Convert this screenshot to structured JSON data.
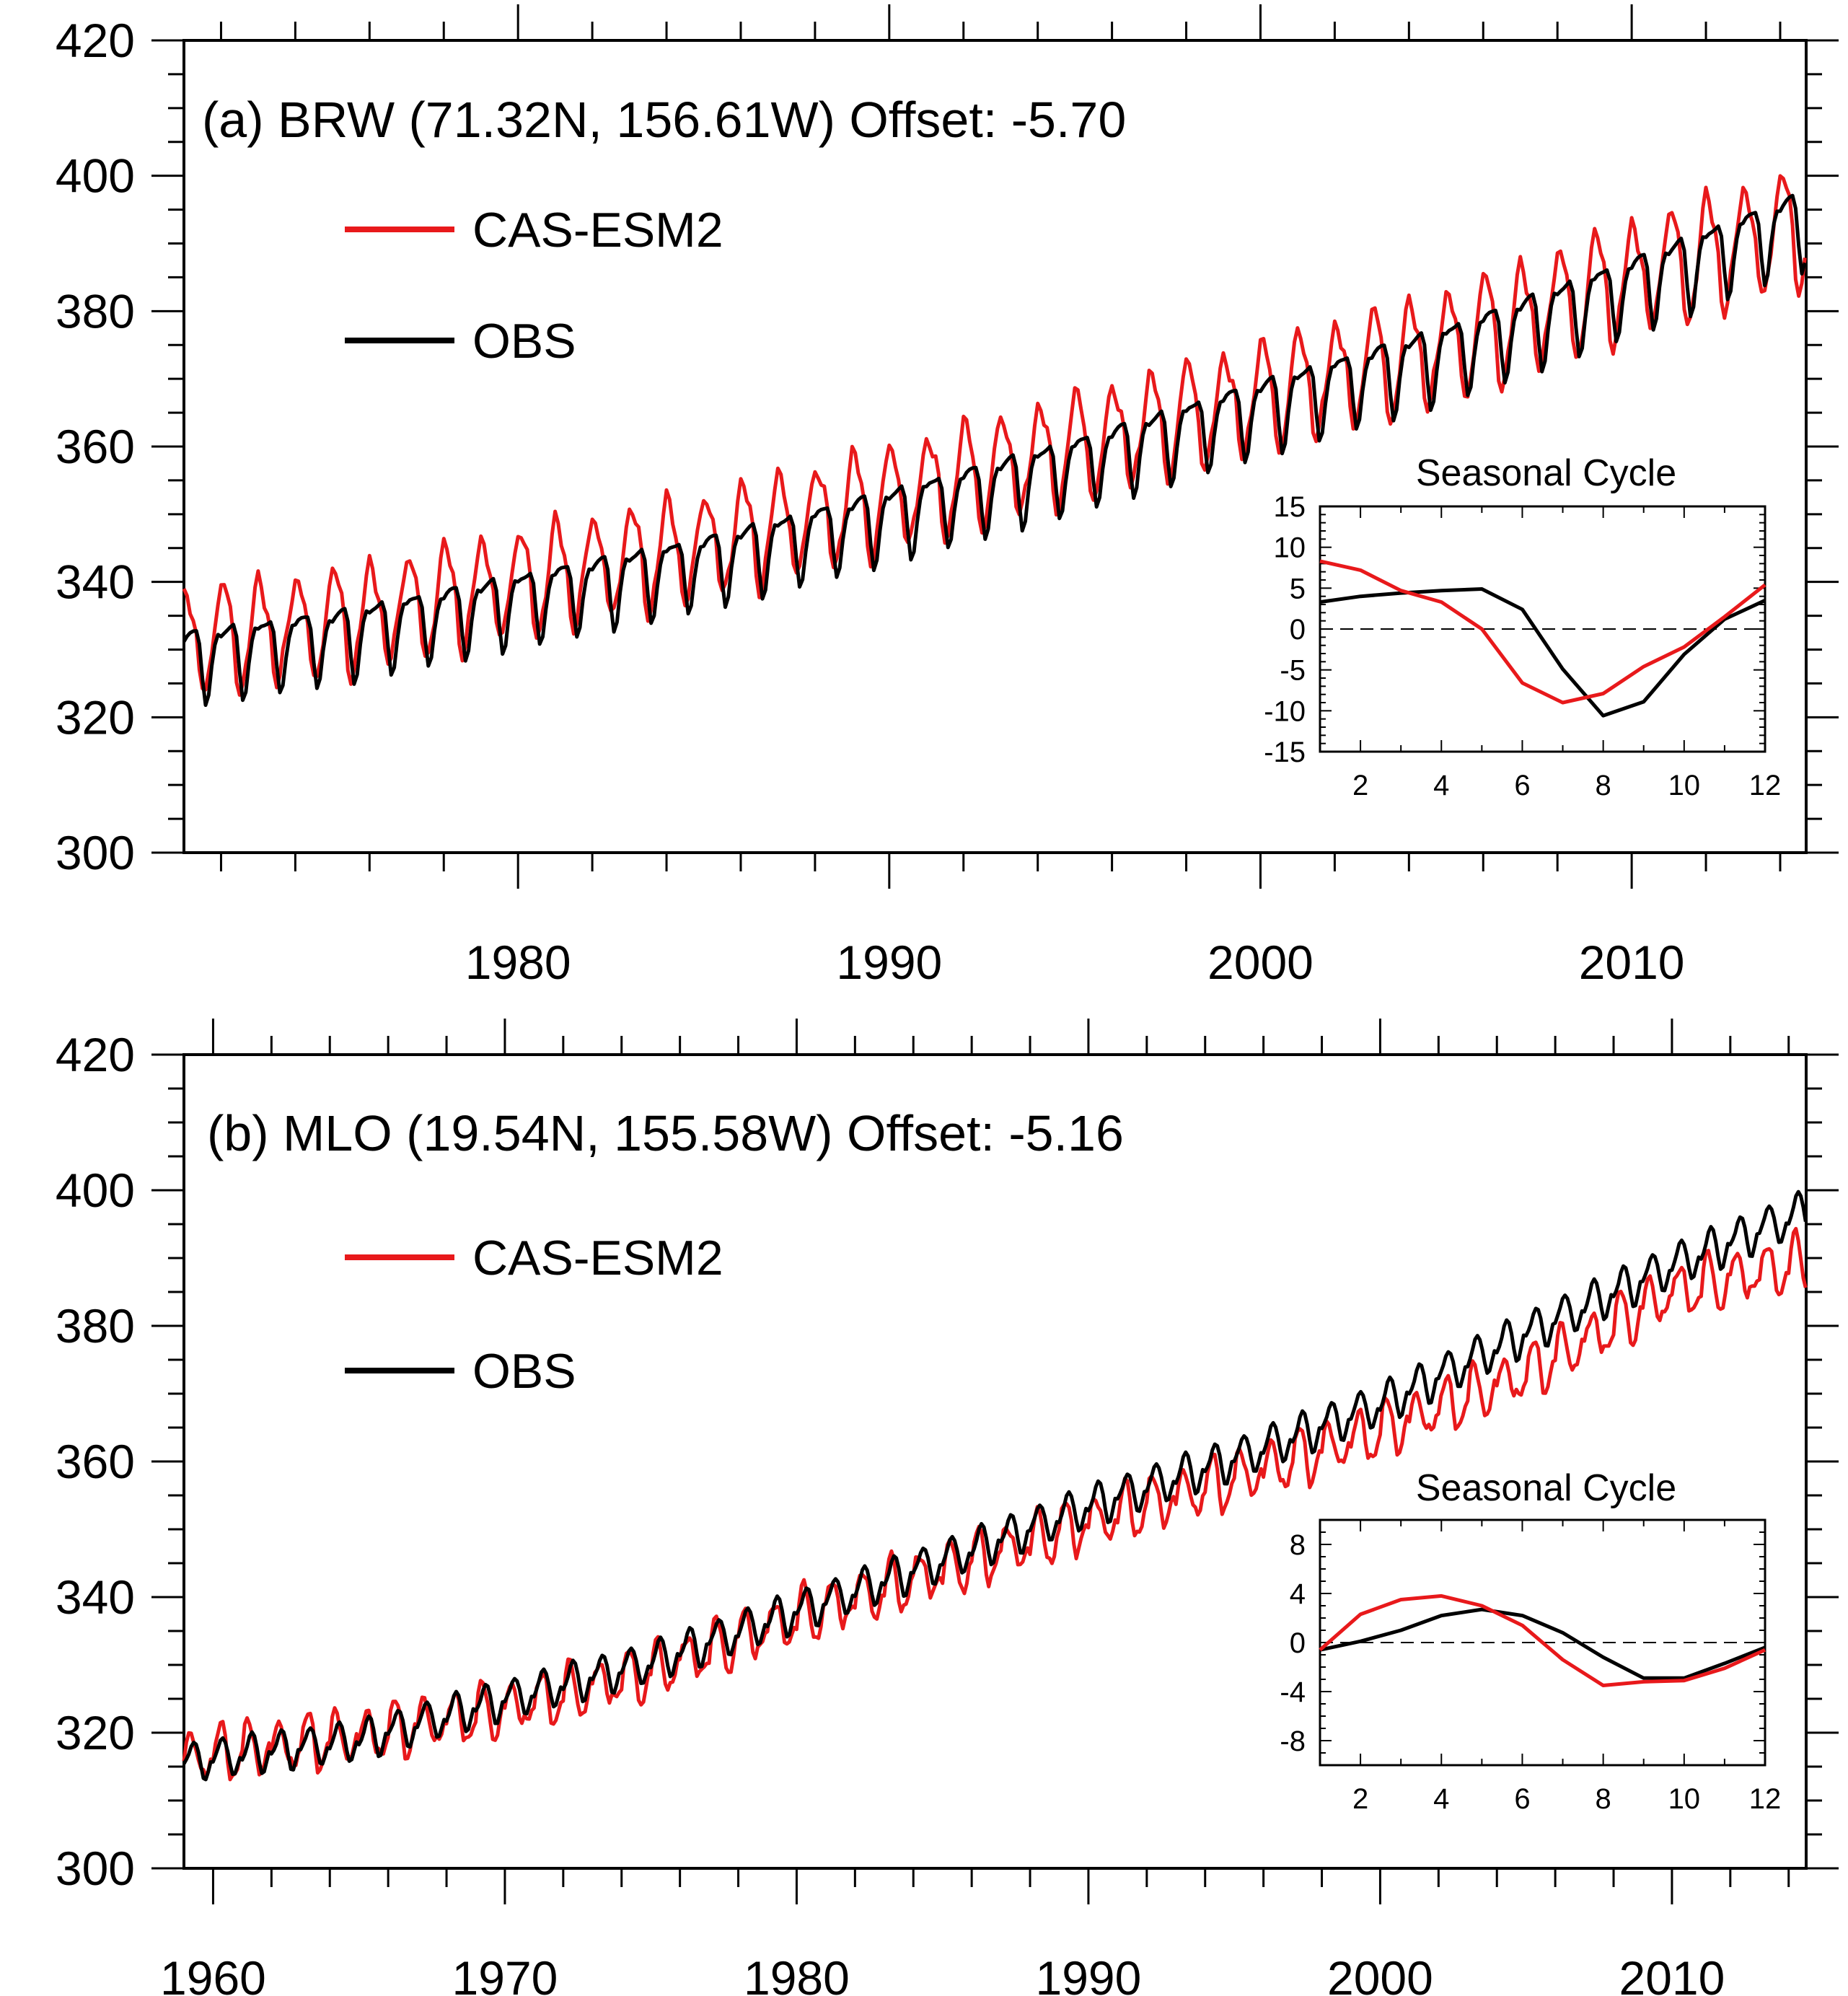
{
  "chart_data": [
    {
      "type": "line",
      "title": "(a) BRW (71.32N, 156.61W)  Offset: -5.70",
      "xlim": [
        1971.0,
        2014.7
      ],
      "ylim": [
        300,
        420
      ],
      "x_major_ticks": [
        1980,
        1990,
        2000,
        2010
      ],
      "y_major_ticks": [
        300,
        320,
        340,
        360,
        380,
        400,
        420
      ],
      "xlabel": "",
      "ylabel": "",
      "legend": {
        "placement": "top-left",
        "entries": [
          "CAS-ESM2",
          "OBS"
        ]
      },
      "series": [
        {
          "name": "CAS-ESM2",
          "color": "#e8191b",
          "trend": {
            "x": [
              1971.0,
              1975,
              1980,
              1985,
              1990,
              1995,
              2000,
              2005,
              2010,
              2014.7
            ],
            "y": [
              331.5,
              334.0,
              340.0,
              345.5,
              352.5,
              360.0,
              367.5,
              375.0,
              385.0,
              393.0
            ]
          },
          "seasonal_amplitude": {
            "x": [
              1971.0,
              1990,
              2014.7
            ],
            "y": [
              8.5,
              8.5,
              9.5
            ]
          },
          "seasonal_cycle": [
            8.3,
            7.2,
            4.7,
            3.3,
            0.0,
            -6.6,
            -9.0,
            -7.9,
            -4.6,
            -2.2,
            1.5,
            5.4
          ]
        },
        {
          "name": "OBS",
          "color": "#000000",
          "trend": {
            "x": [
              1971.0,
              1975,
              1980,
              1985,
              1990,
              1995,
              2000,
              2005,
              2010,
              2014.7
            ],
            "y": [
              329.0,
              332.0,
              337.5,
              343.0,
              350.0,
              357.5,
              366.0,
              374.0,
              384.0,
              394.0
            ]
          },
          "seasonal_amplitude": {
            "x": [
              1971.0,
              1990,
              2014.7
            ],
            "y": [
              7.5,
              7.5,
              8.0
            ]
          },
          "seasonal_cycle": [
            3.3,
            4.0,
            4.4,
            4.7,
            4.9,
            2.4,
            -4.9,
            -10.6,
            -8.9,
            -3.1,
            1.2,
            3.5
          ]
        }
      ],
      "inset": {
        "title": "Seasonal Cycle",
        "placement": "bottom-right",
        "xlim": [
          1,
          12
        ],
        "ylim": [
          -15,
          15
        ],
        "x_ticks": [
          2,
          4,
          6,
          8,
          10,
          12
        ],
        "y_ticks": [
          -15,
          -10,
          -5,
          0,
          5,
          10,
          15
        ],
        "zero_line": "dashed"
      }
    },
    {
      "type": "line",
      "title": "(b) MLO (19.54N, 155.58W)  Offset: -5.16",
      "xlim": [
        1959.0,
        2014.6
      ],
      "ylim": [
        300,
        420
      ],
      "x_major_ticks": [
        1960,
        1970,
        1980,
        1990,
        2000,
        2010
      ],
      "y_major_ticks": [
        300,
        320,
        340,
        360,
        380,
        400,
        420
      ],
      "xlabel": "",
      "ylabel": "",
      "legend": {
        "placement": "top-left",
        "entries": [
          "CAS-ESM2",
          "OBS"
        ]
      },
      "series": [
        {
          "name": "CAS-ESM2",
          "color": "#e8191b",
          "trend": {
            "x": [
              1959.0,
              1965,
              1970,
              1975,
              1980,
              1985,
              1990,
              1995,
              2000,
              2005,
              2010,
              2014.6
            ],
            "y": [
              316.5,
              319.5,
              323.5,
              329.0,
              337.0,
              344.0,
              351.0,
              357.5,
              364.5,
              373.0,
              385.0,
              389.5
            ]
          },
          "seasonal_amplitude": {
            "x": [
              1959.0,
              2014.6
            ],
            "y": [
              3.8,
              3.8
            ]
          },
          "seasonal_cycle": [
            -0.6,
            2.3,
            3.5,
            3.8,
            3.0,
            1.4,
            -1.4,
            -3.5,
            -3.2,
            -3.1,
            -2.1,
            -0.6
          ]
        },
        {
          "name": "OBS",
          "color": "#000000",
          "trend": {
            "x": [
              1959.0,
              1965,
              1970,
              1975,
              1980,
              1985,
              1990,
              1995,
              2000,
              2005,
              2010,
              2014.6
            ],
            "y": [
              315.8,
              319.0,
              325.0,
              330.5,
              338.0,
              345.5,
              353.5,
              360.5,
              368.5,
              379.0,
              389.0,
              397.0
            ]
          },
          "seasonal_amplitude": {
            "x": [
              1959.0,
              2014.6
            ],
            "y": [
              3.0,
              3.3
            ]
          },
          "seasonal_cycle": [
            -0.6,
            0.1,
            1.0,
            2.2,
            2.7,
            2.2,
            0.8,
            -1.2,
            -2.9,
            -2.9,
            -1.7,
            -0.4
          ]
        }
      ],
      "inset": {
        "title": "Seasonal Cycle",
        "placement": "bottom-right",
        "xlim": [
          1,
          12
        ],
        "ylim": [
          -10,
          10
        ],
        "x_ticks": [
          2,
          4,
          6,
          8,
          10,
          12
        ],
        "y_ticks": [
          -8,
          -4,
          0,
          4,
          8
        ],
        "zero_line": "dashed"
      }
    }
  ]
}
